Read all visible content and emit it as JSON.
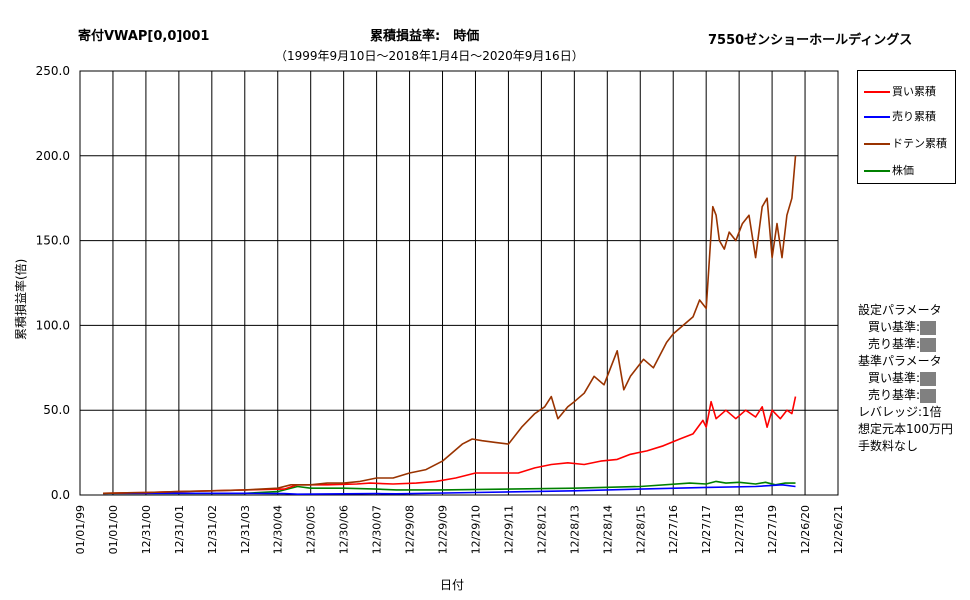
{
  "header": {
    "left_title": "寄付VWAP[0,0]001",
    "center_title": "累積損益率:　時価",
    "right_title": "7550ゼンショーホールディングス",
    "subtitle": "（1999年9月10日～2018年1月4日～2020年9月16日）"
  },
  "axes": {
    "ylabel": "累積損益率(倍)",
    "xlabel": "日付"
  },
  "legend": {
    "items": [
      {
        "label": "買い累積",
        "color": "#ff0000"
      },
      {
        "label": "売り累積",
        "color": "#0000ff"
      },
      {
        "label": "ドテン累積",
        "color": "#993300"
      },
      {
        "label": "株価",
        "color": "#008000"
      }
    ]
  },
  "params": {
    "setting_title": "設定パラメータ",
    "buy_label": "買い基準:",
    "sell_label": "売り基準:",
    "base_title": "基準パラメータ",
    "base_buy_label": "買い基準:",
    "base_sell_label": "売り基準:",
    "leverage": "レバレッジ:1倍",
    "capital": "想定元本100万円",
    "fee": "手数料なし"
  },
  "chart_data": {
    "type": "line",
    "ylim": [
      0,
      250
    ],
    "yticks": [
      "0.0",
      "50.0",
      "100.0",
      "150.0",
      "200.0",
      "250.0"
    ],
    "xticks": [
      "01/01/99",
      "01/01/00",
      "12/31/00",
      "12/31/01",
      "12/31/02",
      "12/31/03",
      "12/30/04",
      "12/30/05",
      "12/30/06",
      "12/30/07",
      "12/29/08",
      "12/29/09",
      "12/29/10",
      "12/29/11",
      "12/28/12",
      "12/28/13",
      "12/28/14",
      "12/28/15",
      "12/27/16",
      "12/27/17",
      "12/27/18",
      "12/27/19",
      "12/26/20",
      "12/26/21"
    ],
    "grid": true,
    "legend_position": "right",
    "series": [
      {
        "name": "買い累積",
        "color": "#ff0000",
        "x": [
          1999.7,
          2001,
          2002,
          2003,
          2004,
          2005.2,
          2005.6,
          2006.5,
          2007.4,
          2007.8,
          2008.5,
          2009.2,
          2009.8,
          2010.4,
          2011,
          2011.6,
          2012.3,
          2012.8,
          2013.3,
          2013.8,
          2014.3,
          2014.8,
          2015.3,
          2015.7,
          2016.2,
          2016.7,
          2017.2,
          2017.6,
          2017.9,
          2018.0,
          2018.15,
          2018.3,
          2018.6,
          2018.9,
          2019.2,
          2019.5,
          2019.7,
          2019.85,
          2020.0,
          2020.25,
          2020.45,
          2020.6,
          2020.71
        ],
        "values": [
          1,
          1.5,
          2,
          2.5,
          3,
          3.5,
          6,
          6,
          6.5,
          7,
          6.5,
          7,
          8,
          10,
          13,
          13,
          13,
          16,
          18,
          19,
          18,
          20,
          21,
          24,
          26,
          29,
          33,
          36,
          44,
          40,
          55,
          45,
          50,
          45,
          50,
          46,
          52,
          40,
          50,
          45,
          50,
          48,
          58
        ]
      },
      {
        "name": "売り累積",
        "color": "#0000ff",
        "x": [
          1999.7,
          2002,
          2004,
          2005.2,
          2005.6,
          2008,
          2008.6,
          2011,
          2014,
          2016,
          2018,
          2019.5,
          2020.3,
          2020.71
        ],
        "values": [
          1,
          1,
          1,
          0.8,
          0.5,
          0.8,
          0.7,
          1.5,
          2.5,
          3.5,
          4.5,
          5,
          6,
          5
        ]
      },
      {
        "name": "ドテン累積",
        "color": "#993300",
        "x": [
          1999.7,
          2001,
          2002,
          2003,
          2004,
          2005,
          2005.4,
          2006,
          2006.5,
          2007,
          2007.5,
          2008,
          2008.5,
          2009,
          2009.5,
          2010,
          2010.3,
          2010.6,
          2010.9,
          2011.2,
          2011.6,
          2012,
          2012.4,
          2012.8,
          2013.1,
          2013.3,
          2013.5,
          2013.8,
          2014.0,
          2014.3,
          2014.6,
          2014.9,
          2015.1,
          2015.3,
          2015.5,
          2015.7,
          2015.9,
          2016.1,
          2016.4,
          2016.8,
          2017.0,
          2017.3,
          2017.6,
          2017.8,
          2018.0,
          2018.1,
          2018.2,
          2018.3,
          2018.4,
          2018.55,
          2018.7,
          2018.9,
          2019.1,
          2019.3,
          2019.5,
          2019.7,
          2019.85,
          2020.0,
          2020.15,
          2020.3,
          2020.45,
          2020.6,
          2020.71
        ],
        "values": [
          1,
          1.5,
          2,
          2.5,
          3,
          4,
          6,
          6,
          7,
          7,
          8,
          10,
          10,
          13,
          15,
          20,
          25,
          30,
          33,
          32,
          31,
          30,
          40,
          48,
          52,
          58,
          45,
          52,
          55,
          60,
          70,
          65,
          75,
          85,
          62,
          70,
          75,
          80,
          75,
          90,
          95,
          100,
          105,
          115,
          110,
          140,
          170,
          165,
          150,
          145,
          155,
          150,
          160,
          165,
          140,
          170,
          175,
          140,
          160,
          140,
          165,
          175,
          200
        ]
      },
      {
        "name": "株価",
        "color": "#008000",
        "x": [
          1999.7,
          2002,
          2004,
          2005,
          2005.6,
          2006,
          2007,
          2008,
          2008.6,
          2010,
          2012,
          2014,
          2016,
          2017.5,
          2018.0,
          2018.3,
          2018.6,
          2019.0,
          2019.5,
          2019.8,
          2020.1,
          2020.4,
          2020.71
        ],
        "values": [
          1,
          1,
          1,
          2,
          5,
          4,
          4,
          3.5,
          3,
          3,
          3.5,
          4,
          5,
          7,
          6.5,
          8,
          7,
          7.5,
          6.5,
          7.5,
          6,
          7,
          7
        ]
      }
    ]
  }
}
